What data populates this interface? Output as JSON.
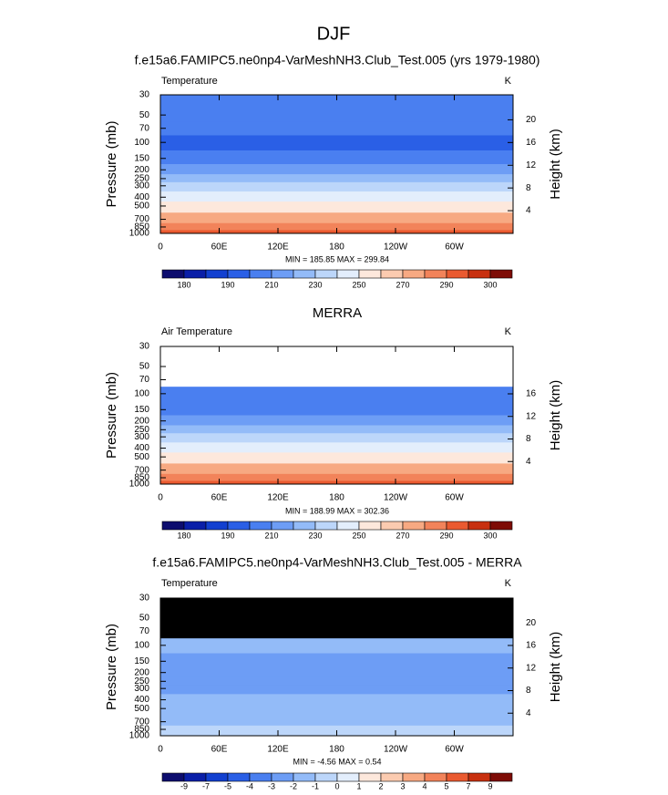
{
  "title": "DJF",
  "chart_data": [
    {
      "type": "contour",
      "title": "f.e15a6.FAMIPC5.ne0np4-VarMeshNH3.Club_Test.005 (yrs 1979-1980)",
      "left_label": "Temperature",
      "right_label": "K",
      "stats": "MIN = 185.85  MAX = 299.84",
      "ylabel": "Pressure (mb)",
      "y2label": "Height (km)",
      "log_scale": true,
      "missing_color": "#ffffff",
      "xlim": [
        0,
        360
      ],
      "xticks": [
        0,
        {
          "value": 60,
          "label": "60E"
        },
        {
          "value": 120,
          "label": "120E"
        },
        180,
        {
          "value": 240,
          "label": "120W"
        },
        {
          "value": 300,
          "label": "60W"
        }
      ],
      "ylim": [
        1000,
        30
      ],
      "yticks": [
        30,
        50,
        70,
        100,
        150,
        200,
        250,
        300,
        400,
        500,
        700,
        850,
        1000
      ],
      "values": [
        206,
        202,
        200,
        199,
        208,
        216,
        222,
        230,
        244,
        255,
        271,
        281,
        290
      ],
      "y2lim": [
        0,
        24.4
      ],
      "y2ticks": [
        4,
        8,
        12,
        16,
        20
      ],
      "colorbar_levels": [
        180,
        185,
        190,
        200,
        210,
        220,
        230,
        240,
        250,
        260,
        270,
        280,
        290,
        295,
        300
      ],
      "colorbar_label_stride": 2,
      "colors": [
        "#0d0d6e",
        "#0a1fa8",
        "#1240d0",
        "#2a5fe6",
        "#4a7ff0",
        "#6d9df5",
        "#93bbf8",
        "#bcd6fa",
        "#e3eefc",
        "#fde8dc",
        "#fbcbb0",
        "#f7a982",
        "#f2835a",
        "#ea5a30",
        "#c8300f",
        "#7e0c06"
      ]
    },
    {
      "type": "contour",
      "title": "MERRA",
      "left_label": "Air Temperature",
      "right_label": "K",
      "stats": "MIN = 188.99  MAX = 302.36",
      "ylabel": "Pressure (mb)",
      "y2label": "Height (km)",
      "log_scale": true,
      "missing_color": "#ffffff",
      "xlim": [
        0,
        360
      ],
      "xticks": [
        0,
        {
          "value": 60,
          "label": "60E"
        },
        {
          "value": 120,
          "label": "120E"
        },
        180,
        {
          "value": 240,
          "label": "120W"
        },
        {
          "value": 300,
          "label": "60W"
        }
      ],
      "ylim": [
        1000,
        30
      ],
      "yticks": [
        30,
        50,
        70,
        100,
        150,
        200,
        250,
        300,
        400,
        500,
        700,
        850,
        1000
      ],
      "values": [
        null,
        null,
        null,
        201,
        209,
        217,
        224,
        232,
        246,
        257,
        273,
        283,
        292
      ],
      "y2lim": [
        0,
        24.4
      ],
      "y2ticks": [
        4,
        8,
        12,
        16
      ],
      "colorbar_levels": [
        180,
        185,
        190,
        200,
        210,
        220,
        230,
        240,
        250,
        260,
        270,
        280,
        290,
        295,
        300
      ],
      "colorbar_label_stride": 2,
      "colors": [
        "#0d0d6e",
        "#0a1fa8",
        "#1240d0",
        "#2a5fe6",
        "#4a7ff0",
        "#6d9df5",
        "#93bbf8",
        "#bcd6fa",
        "#e3eefc",
        "#fde8dc",
        "#fbcbb0",
        "#f7a982",
        "#f2835a",
        "#ea5a30",
        "#c8300f",
        "#7e0c06"
      ]
    },
    {
      "type": "contour",
      "title": "f.e15a6.FAMIPC5.ne0np4-VarMeshNH3.Club_Test.005 - MERRA",
      "left_label": "Temperature",
      "right_label": "K",
      "stats": "MIN = -4.56  MAX =  0.54",
      "ylabel": "Pressure (mb)",
      "y2label": "Height (km)",
      "log_scale": true,
      "missing_color": "#000000",
      "xlim": [
        0,
        360
      ],
      "xticks": [
        0,
        {
          "value": 60,
          "label": "60E"
        },
        {
          "value": 120,
          "label": "120E"
        },
        180,
        {
          "value": 240,
          "label": "120W"
        },
        {
          "value": 300,
          "label": "60W"
        }
      ],
      "ylim": [
        1000,
        30
      ],
      "yticks": [
        30,
        50,
        70,
        100,
        150,
        200,
        250,
        300,
        400,
        500,
        700,
        850,
        1000
      ],
      "values": [
        null,
        null,
        null,
        -1.5,
        -2.5,
        -2.5,
        -3,
        -2.5,
        -2,
        -2,
        -1.5,
        -1,
        -0.5
      ],
      "y2lim": [
        0,
        24.4
      ],
      "y2ticks": [
        4,
        8,
        12,
        16,
        20
      ],
      "colorbar_levels": [
        -9,
        -7,
        -5,
        -4,
        -3,
        -2,
        -1,
        0,
        1,
        2,
        3,
        4,
        5,
        7,
        9
      ],
      "colorbar_label_stride": 1,
      "colors": [
        "#0d0d6e",
        "#0a1fa8",
        "#1240d0",
        "#2a5fe6",
        "#4a7ff0",
        "#6d9df5",
        "#93bbf8",
        "#bcd6fa",
        "#e3eefc",
        "#fde8dc",
        "#fbcbb0",
        "#f7a982",
        "#f2835a",
        "#ea5a30",
        "#c8300f",
        "#7e0c06"
      ]
    }
  ]
}
